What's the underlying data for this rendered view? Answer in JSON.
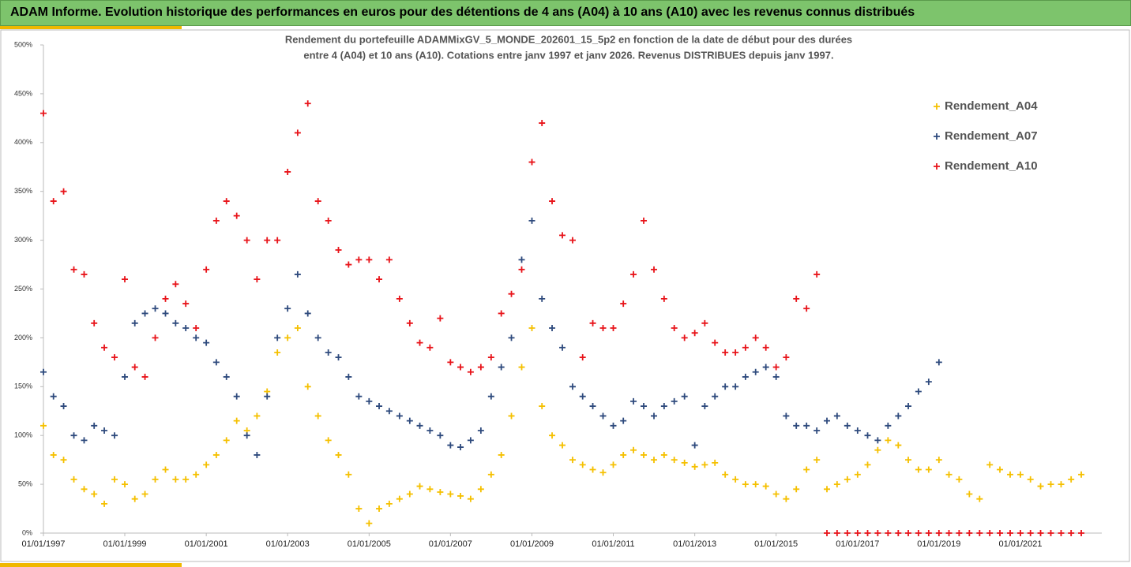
{
  "header": {
    "title": "ADAM Informe. Evolution historique des performances en euros pour des détentions de 4 ans (A04) à 10 ans (A10) avec les revenus connus distribués"
  },
  "chart_data": {
    "type": "scatter",
    "title_lines": [
      "Rendement du portefeuille ADAMMixGV_5_MONDE_202601_15_5p2 en fonction de la date de début pour des durées",
      "entre 4 (A04) et 10 ans (A10). Cotations entre janv 1997 et janv 2026. Revenus DISTRIBUES depuis janv 1997."
    ],
    "x": [
      "1997-01-01",
      "1997-04-01",
      "1997-07-01",
      "1997-10-01",
      "1998-01-01",
      "1998-04-01",
      "1998-07-01",
      "1998-10-01",
      "1999-01-01",
      "1999-04-01",
      "1999-07-01",
      "1999-10-01",
      "2000-01-01",
      "2000-04-01",
      "2000-07-01",
      "2000-10-01",
      "2001-01-01",
      "2001-04-01",
      "2001-07-01",
      "2001-10-01",
      "2002-01-01",
      "2002-04-01",
      "2002-07-01",
      "2002-10-01",
      "2003-01-01",
      "2003-04-01",
      "2003-07-01",
      "2003-10-01",
      "2004-01-01",
      "2004-04-01",
      "2004-07-01",
      "2004-10-01",
      "2005-01-01",
      "2005-04-01",
      "2005-07-01",
      "2005-10-01",
      "2006-01-01",
      "2006-04-01",
      "2006-07-01",
      "2006-10-01",
      "2007-01-01",
      "2007-04-01",
      "2007-07-01",
      "2007-10-01",
      "2008-01-01",
      "2008-04-01",
      "2008-07-01",
      "2008-10-01",
      "2009-01-01",
      "2009-04-01",
      "2009-07-01",
      "2009-10-01",
      "2010-01-01",
      "2010-04-01",
      "2010-07-01",
      "2010-10-01",
      "2011-01-01",
      "2011-04-01",
      "2011-07-01",
      "2011-10-01",
      "2012-01-01",
      "2012-04-01",
      "2012-07-01",
      "2012-10-01",
      "2013-01-01",
      "2013-04-01",
      "2013-07-01",
      "2013-10-01",
      "2014-01-01",
      "2014-04-01",
      "2014-07-01",
      "2014-10-01",
      "2015-01-01",
      "2015-04-01",
      "2015-07-01",
      "2015-10-01",
      "2016-01-01",
      "2016-04-01",
      "2016-07-01",
      "2016-10-01",
      "2017-01-01",
      "2017-04-01",
      "2017-07-01",
      "2017-10-01",
      "2018-01-01",
      "2018-04-01",
      "2018-07-01",
      "2018-10-01",
      "2019-01-01",
      "2019-04-01",
      "2019-07-01",
      "2019-10-01",
      "2020-01-01",
      "2020-04-01",
      "2020-07-01",
      "2020-10-01",
      "2021-01-01",
      "2021-04-01",
      "2021-07-01",
      "2021-10-01",
      "2022-01-01",
      "2022-04-01",
      "2022-07-01"
    ],
    "series": [
      {
        "name": "Rendement_A04",
        "color": "#f5c000",
        "values": [
          110,
          80,
          75,
          55,
          45,
          40,
          30,
          55,
          50,
          35,
          40,
          55,
          65,
          55,
          55,
          60,
          70,
          80,
          95,
          115,
          105,
          120,
          145,
          185,
          200,
          210,
          150,
          120,
          95,
          80,
          60,
          25,
          10,
          25,
          30,
          35,
          40,
          48,
          45,
          42,
          40,
          38,
          35,
          45,
          60,
          80,
          120,
          170,
          210,
          130,
          100,
          90,
          75,
          70,
          65,
          62,
          70,
          80,
          85,
          80,
          75,
          80,
          75,
          72,
          68,
          70,
          72,
          60,
          55,
          50,
          50,
          48,
          40,
          35,
          45,
          65,
          75,
          45,
          50,
          55,
          60,
          70,
          85,
          95,
          90,
          75,
          65,
          65,
          75,
          60,
          55,
          40,
          35,
          70,
          65,
          60,
          60,
          55,
          48,
          50,
          50,
          55,
          60
        ]
      },
      {
        "name": "Rendement_A07",
        "color": "#2e4a7d",
        "values": [
          165,
          140,
          130,
          100,
          95,
          110,
          105,
          100,
          160,
          215,
          225,
          230,
          225,
          215,
          210,
          200,
          195,
          175,
          160,
          140,
          100,
          80,
          140,
          200,
          230,
          265,
          225,
          200,
          185,
          180,
          160,
          140,
          135,
          130,
          125,
          120,
          115,
          110,
          105,
          100,
          90,
          88,
          95,
          105,
          140,
          170,
          200,
          280,
          320,
          240,
          210,
          190,
          150,
          140,
          130,
          120,
          110,
          115,
          135,
          130,
          120,
          130,
          135,
          140,
          90,
          130,
          140,
          150,
          150,
          160,
          165,
          170,
          160,
          120,
          110,
          110,
          105,
          115,
          120,
          110,
          105,
          100,
          95,
          110,
          120,
          130,
          145,
          155,
          175,
          null,
          null,
          null,
          null,
          null,
          null,
          null,
          null,
          null,
          null,
          null,
          null,
          null,
          null
        ]
      },
      {
        "name": "Rendement_A10",
        "color": "#e8141a",
        "values": [
          430,
          340,
          350,
          270,
          265,
          215,
          190,
          180,
          260,
          170,
          160,
          200,
          240,
          255,
          235,
          210,
          270,
          320,
          340,
          325,
          300,
          260,
          300,
          300,
          370,
          410,
          440,
          340,
          320,
          290,
          275,
          280,
          280,
          260,
          280,
          240,
          215,
          195,
          190,
          220,
          175,
          170,
          165,
          170,
          180,
          225,
          245,
          270,
          380,
          420,
          340,
          305,
          300,
          180,
          215,
          210,
          210,
          235,
          265,
          320,
          270,
          240,
          210,
          200,
          205,
          215,
          195,
          185,
          185,
          190,
          200,
          190,
          170,
          180,
          240,
          230,
          265,
          0,
          0,
          0,
          0,
          0,
          0,
          0,
          0,
          0,
          0,
          0,
          0,
          0,
          0,
          0,
          0,
          0,
          0,
          0,
          0,
          0,
          0,
          0,
          0,
          0,
          0
        ]
      }
    ],
    "xlim": [
      "1997-01-01",
      "2023-01-01"
    ],
    "xticks": [
      {
        "value": "1997-01-01",
        "label": "01/01/1997"
      },
      {
        "value": "1999-01-01",
        "label": "01/01/1999"
      },
      {
        "value": "2001-01-01",
        "label": "01/01/2001"
      },
      {
        "value": "2003-01-01",
        "label": "01/01/2003"
      },
      {
        "value": "2005-01-01",
        "label": "01/01/2005"
      },
      {
        "value": "2007-01-01",
        "label": "01/01/2007"
      },
      {
        "value": "2009-01-01",
        "label": "01/01/2009"
      },
      {
        "value": "2011-01-01",
        "label": "01/01/2011"
      },
      {
        "value": "2013-01-01",
        "label": "01/01/2013"
      },
      {
        "value": "2015-01-01",
        "label": "01/01/2015"
      },
      {
        "value": "2017-01-01",
        "label": "01/01/2017"
      },
      {
        "value": "2019-01-01",
        "label": "01/01/2019"
      },
      {
        "value": "2021-01-01",
        "label": "01/01/2021"
      }
    ],
    "ylim": [
      0,
      500
    ],
    "yticks": [
      {
        "value": 0,
        "label": "0%"
      },
      {
        "value": 50,
        "label": "50%"
      },
      {
        "value": 100,
        "label": "100%"
      },
      {
        "value": 150,
        "label": "150%"
      },
      {
        "value": 200,
        "label": "200%"
      },
      {
        "value": 250,
        "label": "250%"
      },
      {
        "value": 300,
        "label": "300%"
      },
      {
        "value": 350,
        "label": "350%"
      },
      {
        "value": 400,
        "label": "400%"
      },
      {
        "value": 450,
        "label": "450%"
      },
      {
        "value": 500,
        "label": "500%"
      }
    ],
    "grid": false,
    "legend": "right"
  }
}
